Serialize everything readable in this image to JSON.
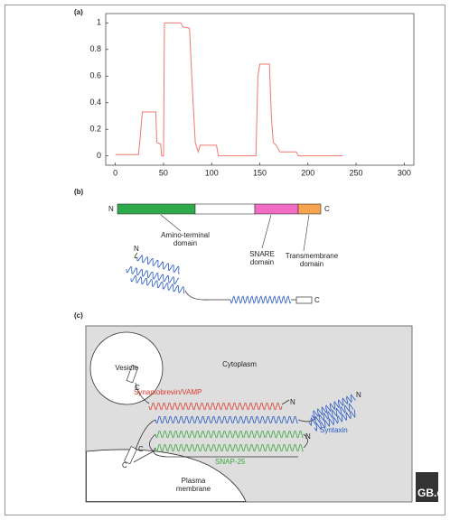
{
  "chart_data": {
    "type": "line",
    "title": "(a)",
    "color": "#ec7a6e",
    "x": [
      0,
      24,
      26,
      28,
      42,
      43,
      47,
      48,
      50,
      51,
      68,
      70,
      77,
      80,
      83,
      86,
      88,
      90,
      105,
      107,
      146,
      148,
      150,
      160,
      162,
      164,
      167,
      171,
      188,
      190,
      236
    ],
    "values": [
      0.01,
      0.01,
      0.15,
      0.33,
      0.33,
      0.1,
      0.09,
      0,
      0,
      1,
      1,
      0.97,
      0.96,
      0.5,
      0.1,
      0.03,
      0.08,
      0.08,
      0.08,
      0,
      0,
      0.6,
      0.69,
      0.69,
      0.3,
      0.1,
      0.08,
      0.03,
      0.03,
      0,
      0
    ],
    "xlim": [
      -10,
      310
    ],
    "ylim": [
      -0.07,
      1.07
    ],
    "xticks": [
      0,
      50,
      100,
      150,
      200,
      250,
      300
    ],
    "yticks": [
      0,
      0.2,
      0.4,
      0.6,
      0.8,
      1
    ],
    "grid": false
  },
  "panel_b": {
    "label": "(b)",
    "n": "N",
    "c": "C",
    "domains": [
      [
        "Amino-terminal",
        "domain"
      ],
      [
        "SNARE",
        "domain"
      ],
      [
        "Transmembrane",
        "domain"
      ]
    ],
    "helix_n": "N",
    "helix_c": "C"
  },
  "panel_c": {
    "label": "(c)",
    "vesicle": "Vesicle",
    "cytoplasm": "Cytoplasm",
    "synaptobrevin": "Synaptobrevin/VAMP",
    "syntaxin": "Syntaxin",
    "snap25": "SNAP-25",
    "membrane": [
      "Plasma",
      "membrane"
    ],
    "n1": "N",
    "n2": "N",
    "n3": "N",
    "c1": "C",
    "c2": "C",
    "c3": "C"
  },
  "logo": "GB.c"
}
